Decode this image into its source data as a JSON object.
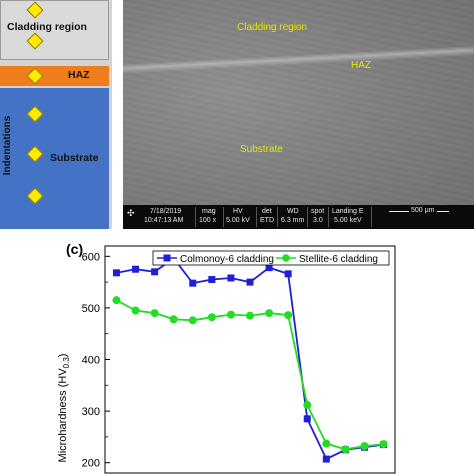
{
  "schematic": {
    "cladding_label": "Cladding region",
    "haz_label": "HAZ",
    "substrate_label": "Substrate",
    "indentations_label": "Indentations",
    "zone_colors": {
      "cladding": "#d9d9d9",
      "haz": "#ef7d1b",
      "substrate": "#4472c4",
      "indent": "#ffea00"
    }
  },
  "sem_image": {
    "cladding_label": "Cladding region",
    "haz_label": "HAZ",
    "substrate_label": "Substrate",
    "label_color": "#e6e600",
    "info_bar": {
      "date": "7/18/2019",
      "time": "10:47:13 AM",
      "mag_header": "mag",
      "mag_value": "100 x",
      "hv_header": "HV",
      "hv_value": "5.00 kV",
      "det_header": "det",
      "det_value": "ETD",
      "wd_header": "WD",
      "wd_value": "6.3 mm",
      "spot_header": "spot",
      "spot_value": "3.0",
      "landing_header": "Landing E",
      "landing_value": "5.00 keV",
      "scale_label": "500 μm"
    }
  },
  "chart_panel_label": "(c)",
  "chart_data": {
    "type": "line",
    "title": "",
    "xlabel": "",
    "ylabel": "Microhardness (HV",
    "ylabel_sub": "0.3",
    "ylabel_close": ")",
    "ylim": [
      180,
      620
    ],
    "yticks": [
      "200",
      "300",
      "400",
      "500",
      "600"
    ],
    "legend_position": "top-right",
    "x": [
      1,
      2,
      3,
      4,
      5,
      6,
      7,
      8,
      9,
      10,
      11,
      12,
      13,
      14,
      15
    ],
    "series": [
      {
        "name": "Colmonoy-6 cladding",
        "color": "#1f1fd6",
        "marker": "square",
        "values": [
          568,
          575,
          570,
          596,
          548,
          555,
          558,
          550,
          578,
          566,
          285,
          207,
          225,
          230,
          235
        ]
      },
      {
        "name": "Stellite-6 cladding",
        "color": "#22dd22",
        "marker": "circle",
        "values": [
          515,
          495,
          490,
          478,
          476,
          482,
          487,
          485,
          490,
          486,
          312,
          237,
          226,
          232,
          236
        ]
      }
    ]
  }
}
